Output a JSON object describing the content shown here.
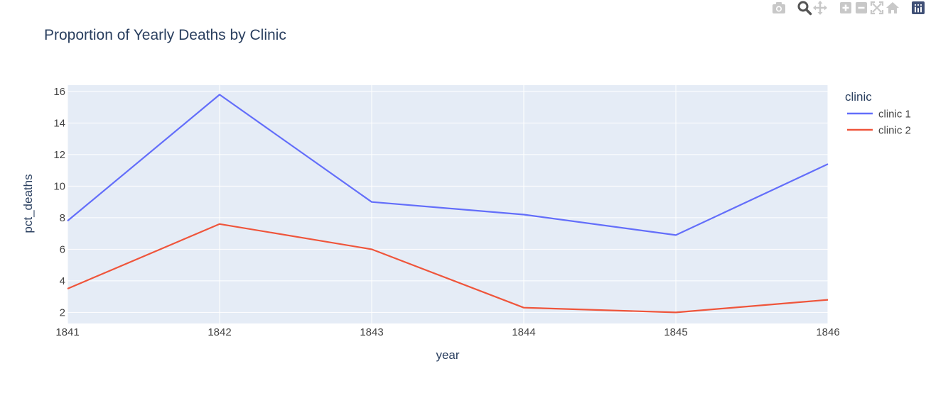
{
  "modebar": {
    "icons": [
      "camera-icon",
      "zoom-icon",
      "pan-icon",
      "zoom-in-icon",
      "zoom-out-icon",
      "autoscale-icon",
      "reset-axes-icon",
      "plotly-logo-icon"
    ]
  },
  "colors": {
    "plot_bg": "#e5ecf6",
    "grid": "#ffffff",
    "text": "#2a3f5f",
    "tick_text": "#444444",
    "modebar_icon": "#c8c8c8"
  },
  "chart_data": {
    "type": "line",
    "title": "Proportion of Yearly Deaths by Clinic",
    "xlabel": "year",
    "ylabel": "pct_deaths",
    "xlim": [
      1841,
      1846
    ],
    "ylim": [
      1.3,
      16.4
    ],
    "x_ticks": [
      1841,
      1842,
      1843,
      1844,
      1845,
      1846
    ],
    "x_tick_labels": [
      "1841",
      "1842",
      "1843",
      "1844",
      "1845",
      "1846"
    ],
    "y_ticks": [
      2,
      4,
      6,
      8,
      10,
      12,
      14,
      16
    ],
    "y_tick_labels": [
      "2",
      "4",
      "6",
      "8",
      "10",
      "12",
      "14",
      "16"
    ],
    "grid": true,
    "legend": {
      "title": "clinic",
      "position": "right"
    },
    "series": [
      {
        "name": "clinic 1",
        "color": "#636efa",
        "x": [
          1841,
          1842,
          1843,
          1844,
          1845,
          1846
        ],
        "values": [
          7.8,
          15.8,
          9.0,
          8.2,
          6.9,
          11.4
        ]
      },
      {
        "name": "clinic 2",
        "color": "#ef553b",
        "x": [
          1841,
          1842,
          1843,
          1844,
          1845,
          1846
        ],
        "values": [
          3.5,
          7.6,
          6.0,
          2.3,
          2.0,
          2.8
        ]
      }
    ]
  }
}
